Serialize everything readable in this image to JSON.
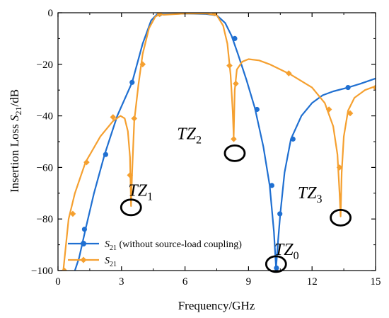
{
  "chart_data": {
    "type": "line",
    "xlabel": "Frequency/GHz",
    "ylabel_prefix": "Insertion Loss ",
    "ylabel_var": "S",
    "ylabel_sub": "21",
    "ylabel_suffix": "/dB",
    "xlim": [
      0,
      15
    ],
    "ylim": [
      -100,
      0
    ],
    "x_ticks": [
      0,
      3,
      6,
      9,
      12,
      15
    ],
    "y_ticks": [
      0,
      -20,
      -40,
      -60,
      -80,
      -100
    ],
    "grid": false,
    "legend_position": "bottom-left",
    "series": [
      {
        "legend_var": "S",
        "legend_sub": "21",
        "legend_note": " (without source-load coupling)",
        "color": "#1f6fd1",
        "marker": "circle",
        "x": [
          0.8,
          1.0,
          1.3,
          1.7,
          2.2,
          2.8,
          3.5,
          4.0,
          4.4,
          4.7,
          5.0,
          6.0,
          7.0,
          7.5,
          7.9,
          8.2,
          8.5,
          8.9,
          9.3,
          9.7,
          10.0,
          10.2,
          10.3,
          10.4,
          10.5,
          10.7,
          11.0,
          11.5,
          12.0,
          12.5,
          13.0,
          13.7,
          14.3,
          15.0
        ],
        "y": [
          -100,
          -95,
          -84,
          -70,
          -55,
          -40,
          -27,
          -12,
          -3,
          -0.4,
          -0.6,
          -0.3,
          -0.5,
          -1,
          -4,
          -9,
          -16,
          -26,
          -37,
          -52,
          -67,
          -85,
          -99,
          -88,
          -78,
          -62,
          -49,
          -40,
          -35,
          -32,
          -30.5,
          -29,
          -27.5,
          -25.5
        ],
        "marker_x": [
          1.25,
          2.25,
          3.5,
          4.8,
          7.4,
          8.35,
          9.4,
          10.1,
          10.32,
          10.48,
          11.1,
          13.7
        ],
        "marker_y": [
          -84,
          -55,
          -27,
          -0.5,
          -0.3,
          -10,
          -37.5,
          -67,
          -99,
          -78,
          -49,
          -29
        ]
      },
      {
        "legend_var": "S",
        "legend_sub": "21",
        "legend_note": "",
        "color": "#f5a030",
        "marker": "diamond",
        "x": [
          0.25,
          0.5,
          0.8,
          1.3,
          2.0,
          2.6,
          2.95,
          3.15,
          3.3,
          3.4,
          3.45,
          3.5,
          3.6,
          3.8,
          4.0,
          4.3,
          4.6,
          4.8,
          5.0,
          6.0,
          7.0,
          7.5,
          7.8,
          8.0,
          8.15,
          8.25,
          8.3,
          8.35,
          8.45,
          8.7,
          9.0,
          9.5,
          10.0,
          11.0,
          12.0,
          12.6,
          13.0,
          13.2,
          13.3,
          13.35,
          13.4,
          13.5,
          13.7,
          14.0,
          14.5,
          15.0
        ],
        "y": [
          -100,
          -80,
          -70,
          -58,
          -48,
          -42,
          -40,
          -41,
          -46,
          -56,
          -75,
          -62,
          -42,
          -28,
          -16,
          -6,
          -1.5,
          -0.6,
          -0.8,
          -0.3,
          -0.3,
          -1,
          -5,
          -12,
          -24,
          -38,
          -48,
          -30,
          -22,
          -19,
          -18,
          -18.5,
          -20,
          -24,
          -29,
          -35,
          -44,
          -55,
          -70,
          -79,
          -62,
          -48,
          -38,
          -33,
          -30,
          -28.5
        ],
        "marker_x": [
          0.3,
          0.7,
          1.35,
          2.6,
          3.4,
          3.6,
          4.0,
          4.8,
          7.4,
          8.1,
          8.3,
          8.4,
          10.9,
          12.8,
          13.3,
          13.8,
          15.0
        ],
        "marker_y": [
          -100,
          -78,
          -58,
          -40.5,
          -63,
          -41,
          -20,
          -0.5,
          -0.2,
          -20.5,
          -49,
          -27.5,
          -23.5,
          -37.5,
          -60,
          -39,
          -29
        ]
      }
    ],
    "annotations": [
      {
        "var": "TZ",
        "sub": "1",
        "x": 3.9,
        "y": -71
      },
      {
        "var": "TZ",
        "sub": "2",
        "x": 6.2,
        "y": -49
      },
      {
        "var": "TZ",
        "sub": "3",
        "x": 11.9,
        "y": -72
      },
      {
        "var": "TZ",
        "sub": "0",
        "x": 10.8,
        "y": -94
      }
    ],
    "circles": [
      {
        "x": 3.45,
        "y": -75.5
      },
      {
        "x": 8.35,
        "y": -54.5
      },
      {
        "x": 13.35,
        "y": -79.5
      },
      {
        "x": 10.3,
        "y": -97.5
      }
    ]
  }
}
